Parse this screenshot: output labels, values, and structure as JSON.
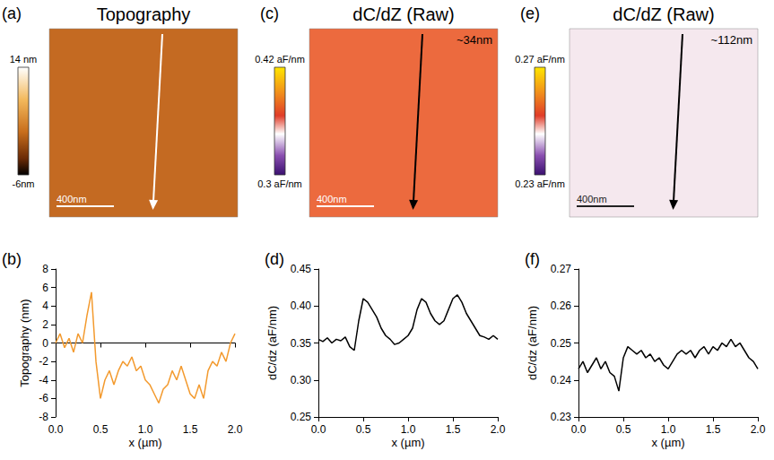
{
  "images": [
    {
      "letter": "(a)",
      "title": "Topography",
      "colorbar": {
        "range": [
          -6,
          14
        ],
        "ticks": [
          {
            "value": 14,
            "label": "14 nm"
          },
          {
            "value": -6,
            "label": "-6nm"
          }
        ]
      },
      "scale_bar": "400nm"
    },
    {
      "letter": "(c)",
      "title": "dC/dZ (Raw)",
      "annotation": "~34nm",
      "colorbar": {
        "range": [
          0.3,
          0.42
        ],
        "ticks": [
          {
            "value": 0.42,
            "label": "0.42 aF/nm"
          },
          {
            "value": 0.3,
            "label": "0.3 aF/nm"
          }
        ]
      },
      "scale_bar": "400nm"
    },
    {
      "letter": "(e)",
      "title": "dC/dZ (Raw)",
      "annotation": "~112nm",
      "colorbar": {
        "range": [
          0.23,
          0.27
        ],
        "ticks": [
          {
            "value": 0.27,
            "label": "0.27 aF/nm"
          },
          {
            "value": 0.23,
            "label": "0.23 aF/nm"
          }
        ]
      },
      "scale_bar": "400nm"
    }
  ],
  "chart_data": [
    {
      "letter": "(b)",
      "type": "line",
      "x_label": "x (µm)",
      "y_label": "Topography (nm)",
      "color": "#f39a2e",
      "x": [
        0,
        0.05,
        0.1,
        0.15,
        0.2,
        0.25,
        0.3,
        0.35,
        0.4,
        0.45,
        0.5,
        0.55,
        0.6,
        0.65,
        0.7,
        0.75,
        0.8,
        0.85,
        0.9,
        0.95,
        1,
        1.05,
        1.1,
        1.15,
        1.2,
        1.25,
        1.3,
        1.35,
        1.4,
        1.45,
        1.5,
        1.55,
        1.6,
        1.65,
        1.7,
        1.75,
        1.8,
        1.85,
        1.9,
        1.95,
        2
      ],
      "values": [
        0,
        1,
        -0.5,
        0.5,
        -1,
        1,
        0,
        3,
        5.5,
        -2,
        -6,
        -4,
        -3,
        -4.5,
        -3,
        -2,
        -2.5,
        -1.5,
        -3,
        -2.5,
        -4,
        -4.5,
        -5.5,
        -6.5,
        -5,
        -4.5,
        -3,
        -4,
        -2.5,
        -4,
        -5.5,
        -6,
        -4.5,
        -6,
        -3,
        -2,
        -2.5,
        -1,
        -2,
        0,
        1
      ],
      "xlim": [
        0,
        2
      ],
      "xticks": [
        {
          "value": 0,
          "label": "0.0"
        },
        0.5,
        {
          "value": 1,
          "label": "1.0"
        },
        1.5,
        {
          "value": 2,
          "label": "2.0"
        }
      ],
      "ylim": [
        -8,
        8
      ],
      "yticks": [
        -8,
        -6,
        -4,
        -2,
        0,
        2,
        4,
        6,
        8
      ]
    },
    {
      "letter": "(d)",
      "type": "line",
      "x_label": "x (µm)",
      "y_label": "dC/dz (aF/nm)",
      "color": "#000000",
      "x": [
        0,
        0.05,
        0.1,
        0.15,
        0.2,
        0.25,
        0.3,
        0.35,
        0.4,
        0.45,
        0.5,
        0.55,
        0.6,
        0.65,
        0.7,
        0.75,
        0.8,
        0.85,
        0.9,
        0.95,
        1,
        1.05,
        1.1,
        1.15,
        1.2,
        1.25,
        1.3,
        1.35,
        1.4,
        1.45,
        1.5,
        1.55,
        1.6,
        1.65,
        1.7,
        1.75,
        1.8,
        1.85,
        1.9,
        1.95,
        2
      ],
      "values": [
        0.355,
        0.352,
        0.357,
        0.35,
        0.355,
        0.353,
        0.358,
        0.345,
        0.34,
        0.38,
        0.41,
        0.405,
        0.395,
        0.385,
        0.37,
        0.36,
        0.355,
        0.348,
        0.35,
        0.355,
        0.36,
        0.37,
        0.395,
        0.41,
        0.405,
        0.39,
        0.38,
        0.375,
        0.38,
        0.395,
        0.41,
        0.415,
        0.405,
        0.39,
        0.38,
        0.37,
        0.36,
        0.358,
        0.355,
        0.36,
        0.355
      ],
      "xlim": [
        0,
        2
      ],
      "xticks": [
        {
          "value": 0,
          "label": "0.0"
        },
        0.5,
        {
          "value": 1,
          "label": "1.0"
        },
        1.5,
        {
          "value": 2,
          "label": "2.0"
        }
      ],
      "ylim": [
        0.25,
        0.45
      ],
      "yticks": [
        0.25,
        {
          "value": 0.3,
          "label": "0.30"
        },
        0.35,
        {
          "value": 0.4,
          "label": "0.40"
        },
        0.45
      ]
    },
    {
      "letter": "(f)",
      "type": "line",
      "x_label": "x (µm)",
      "y_label": "dC/dz (aF/nm)",
      "color": "#000000",
      "x": [
        0,
        0.05,
        0.1,
        0.15,
        0.2,
        0.25,
        0.3,
        0.35,
        0.4,
        0.45,
        0.5,
        0.55,
        0.6,
        0.65,
        0.7,
        0.75,
        0.8,
        0.85,
        0.9,
        0.95,
        1,
        1.05,
        1.1,
        1.15,
        1.2,
        1.25,
        1.3,
        1.35,
        1.4,
        1.45,
        1.5,
        1.55,
        1.6,
        1.65,
        1.7,
        1.75,
        1.8,
        1.85,
        1.9,
        1.95,
        2
      ],
      "values": [
        0.243,
        0.245,
        0.242,
        0.244,
        0.246,
        0.243,
        0.245,
        0.242,
        0.241,
        0.237,
        0.246,
        0.249,
        0.248,
        0.247,
        0.248,
        0.246,
        0.247,
        0.245,
        0.246,
        0.244,
        0.243,
        0.245,
        0.247,
        0.248,
        0.247,
        0.248,
        0.246,
        0.248,
        0.249,
        0.247,
        0.249,
        0.248,
        0.25,
        0.249,
        0.251,
        0.249,
        0.25,
        0.248,
        0.246,
        0.245,
        0.243
      ],
      "xlim": [
        0,
        2
      ],
      "xticks": [
        {
          "value": 0,
          "label": "0.0"
        },
        0.5,
        {
          "value": 1,
          "label": "1.0"
        },
        1.5,
        {
          "value": 2,
          "label": "2.0"
        }
      ],
      "ylim": [
        0.23,
        0.27
      ],
      "yticks": [
        0.23,
        0.24,
        0.25,
        0.26,
        0.27
      ]
    }
  ]
}
